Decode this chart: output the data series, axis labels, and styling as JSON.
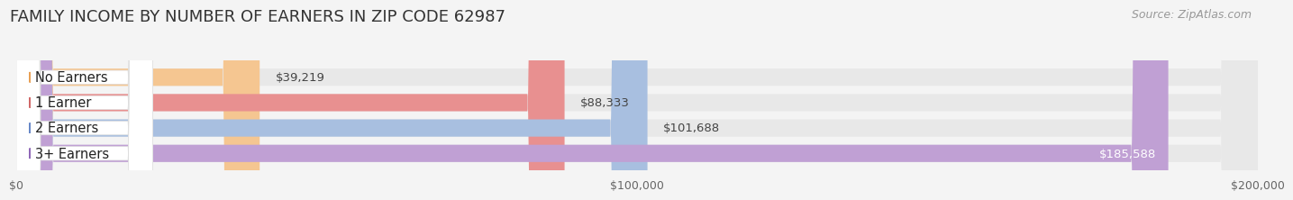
{
  "title": "FAMILY INCOME BY NUMBER OF EARNERS IN ZIP CODE 62987",
  "source": "Source: ZipAtlas.com",
  "categories": [
    "No Earners",
    "1 Earner",
    "2 Earners",
    "3+ Earners"
  ],
  "values": [
    39219,
    88333,
    101688,
    185588
  ],
  "bar_colors": [
    "#f5c691",
    "#e89090",
    "#a8bfe0",
    "#c0a0d4"
  ],
  "label_colors": [
    "#e8a055",
    "#d06868",
    "#6888c8",
    "#9068b8"
  ],
  "xlim": [
    0,
    200000
  ],
  "xticks": [
    0,
    100000,
    200000
  ],
  "xtick_labels": [
    "$0",
    "$100,000",
    "$200,000"
  ],
  "background_color": "#f4f4f4",
  "bar_background": "#e8e8e8",
  "title_fontsize": 13,
  "source_fontsize": 9,
  "label_fontsize": 10.5,
  "value_fontsize": 9.5,
  "bar_height": 0.68,
  "figsize": [
    14.06,
    2.33
  ]
}
